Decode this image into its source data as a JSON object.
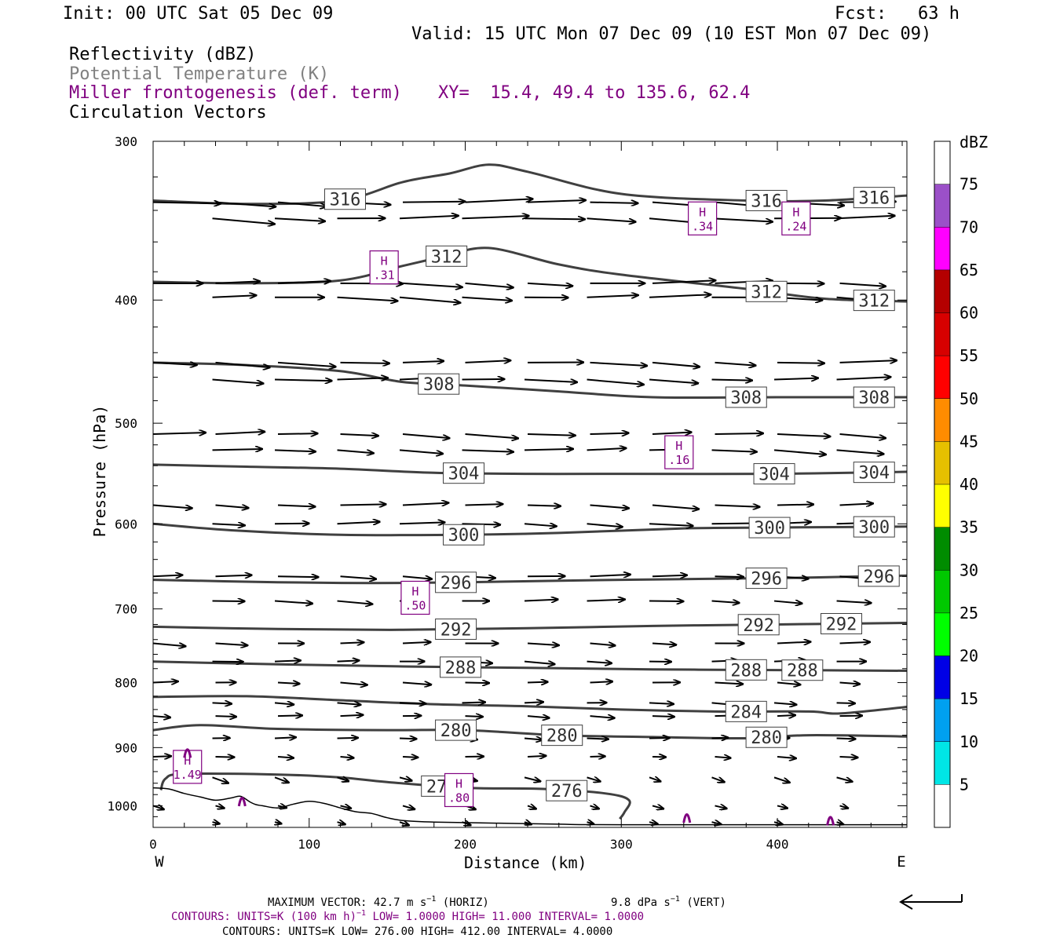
{
  "header": {
    "init": "Init: 00 UTC Sat 05 Dec 09",
    "fcst": "Fcst:   63 h",
    "valid": "Valid: 15 UTC Mon 07 Dec 09 (10 EST Mon 07 Dec 09)"
  },
  "fields": {
    "reflectivity": "Reflectivity (dBZ)",
    "theta": "Potential Temperature (K)",
    "frontogenesis": "Miller frontogenesis (def. term)",
    "xy": "XY=  15.4, 49.4 to 135.6, 62.4",
    "vectors": "Circulation Vectors"
  },
  "colors": {
    "purple": "#800080",
    "theta_line": "#404040",
    "vector": "#000000"
  },
  "chart_data": {
    "type": "cross-section",
    "xlabel": "Distance (km)",
    "ylabel": "Pressure (hPa)",
    "xlim": [
      0,
      483
    ],
    "ylim": [
      1040,
      300
    ],
    "y_log": true,
    "x_ticks": [
      "0",
      "100",
      "200",
      "300",
      "400"
    ],
    "y_ticks": [
      "300",
      "400",
      "500",
      "600",
      "700",
      "800",
      "900",
      "1000"
    ],
    "endpoint_left": "W",
    "endpoint_right": "E",
    "theta_contours": [
      {
        "label": "316",
        "points": [
          [
            0,
            334
          ],
          [
            60,
            336
          ],
          [
            120,
            334
          ],
          [
            160,
            323
          ],
          [
            190,
            318
          ],
          [
            215,
            313
          ],
          [
            240,
            317
          ],
          [
            300,
            330
          ],
          [
            380,
            334
          ],
          [
            430,
            334
          ],
          [
            483,
            331
          ]
        ],
        "label_x": [
          123,
          393,
          462
        ]
      },
      {
        "label": "312",
        "points": [
          [
            0,
            387
          ],
          [
            60,
            388
          ],
          [
            120,
            386
          ],
          [
            160,
            376
          ],
          [
            185,
            370
          ],
          [
            215,
            364
          ],
          [
            260,
            375
          ],
          [
            300,
            382
          ],
          [
            380,
            392
          ],
          [
            430,
            399
          ],
          [
            483,
            401
          ]
        ],
        "label_x": [
          188,
          393,
          462
        ]
      },
      {
        "label": "308",
        "points": [
          [
            0,
            448
          ],
          [
            60,
            450
          ],
          [
            120,
            455
          ],
          [
            160,
            464
          ],
          [
            200,
            467
          ],
          [
            260,
            472
          ],
          [
            320,
            477
          ],
          [
            400,
            477
          ],
          [
            483,
            477
          ]
        ],
        "label_x": [
          183,
          380,
          462
        ]
      },
      {
        "label": "304",
        "points": [
          [
            0,
            539
          ],
          [
            60,
            541
          ],
          [
            120,
            543
          ],
          [
            180,
            547
          ],
          [
            240,
            548
          ],
          [
            300,
            548
          ],
          [
            400,
            548
          ],
          [
            483,
            546
          ]
        ],
        "label_x": [
          199,
          398,
          462
        ]
      },
      {
        "label": "300",
        "points": [
          [
            0,
            600
          ],
          [
            50,
            607
          ],
          [
            120,
            612
          ],
          [
            200,
            612
          ],
          [
            260,
            610
          ],
          [
            340,
            605
          ],
          [
            400,
            604
          ],
          [
            483,
            603
          ]
        ],
        "label_x": [
          199,
          395,
          462
        ]
      },
      {
        "label": "296",
        "points": [
          [
            0,
            664
          ],
          [
            80,
            667
          ],
          [
            140,
            668
          ],
          [
            200,
            667
          ],
          [
            300,
            664
          ],
          [
            400,
            662
          ],
          [
            483,
            659
          ]
        ],
        "label_x": [
          194,
          393,
          465
        ]
      },
      {
        "label": "292",
        "points": [
          [
            0,
            723
          ],
          [
            80,
            726
          ],
          [
            160,
            727
          ],
          [
            240,
            725
          ],
          [
            320,
            722
          ],
          [
            400,
            720
          ],
          [
            483,
            718
          ]
        ],
        "label_x": [
          194,
          388,
          441
        ]
      },
      {
        "label": "288",
        "points": [
          [
            0,
            770
          ],
          [
            80,
            774
          ],
          [
            160,
            777
          ],
          [
            240,
            779
          ],
          [
            320,
            781
          ],
          [
            400,
            782
          ],
          [
            483,
            783
          ]
        ],
        "label_x": [
          197,
          380,
          416
        ]
      },
      {
        "label": "284",
        "points": [
          [
            0,
            821
          ],
          [
            60,
            820
          ],
          [
            120,
            826
          ],
          [
            180,
            832
          ],
          [
            240,
            835
          ],
          [
            300,
            840
          ],
          [
            360,
            843
          ],
          [
            420,
            843
          ],
          [
            440,
            846
          ],
          [
            483,
            836
          ]
        ],
        "label_x": [
          380
        ]
      },
      {
        "label": "280",
        "points": [
          [
            0,
            872
          ],
          [
            30,
            864
          ],
          [
            80,
            870
          ],
          [
            150,
            872
          ],
          [
            200,
            872
          ],
          [
            260,
            880
          ],
          [
            320,
            883
          ],
          [
            380,
            885
          ],
          [
            420,
            880
          ],
          [
            483,
            882
          ]
        ],
        "label_x": [
          194,
          262,
          393
        ]
      },
      {
        "label": "276",
        "points": [
          [
            5,
            972
          ],
          [
            8,
            952
          ],
          [
            20,
            944
          ],
          [
            80,
            945
          ],
          [
            120,
            950
          ],
          [
            150,
            958
          ],
          [
            200,
            968
          ],
          [
            250,
            970
          ],
          [
            290,
            978
          ],
          [
            305,
            990
          ],
          [
            302,
            1012
          ],
          [
            299,
            1024
          ]
        ],
        "label_x": [
          185,
          265
        ]
      }
    ],
    "frontogenesis_maxima": [
      {
        "letter": "H",
        "value": "1.49",
        "x": 22,
        "p": 932
      },
      {
        "letter": "H",
        "value": ".31",
        "x": 148,
        "p": 377
      },
      {
        "letter": "H",
        "value": ".50",
        "x": 168,
        "p": 686
      },
      {
        "letter": "H",
        "value": ".80",
        "x": 196,
        "p": 972
      },
      {
        "letter": "H",
        "value": ".16",
        "x": 337,
        "p": 527
      },
      {
        "letter": "H",
        "value": ".34",
        "x": 352,
        "p": 345
      },
      {
        "letter": "H",
        "value": ".24",
        "x": 412,
        "p": 345
      }
    ],
    "reflectivity_scale": {
      "title": "dBZ",
      "levels": [
        "5",
        "10",
        "15",
        "20",
        "25",
        "30",
        "35",
        "40",
        "45",
        "50",
        "55",
        "60",
        "65",
        "70",
        "75"
      ],
      "colors": [
        "#ffffff",
        "#00e6e6",
        "#00a0f0",
        "#0000e6",
        "#00ff00",
        "#00c800",
        "#008c00",
        "#ffff00",
        "#e6c000",
        "#ff8c00",
        "#ff0000",
        "#d70000",
        "#b40000",
        "#ff00ff",
        "#9b50c8",
        "#ffffff"
      ]
    }
  },
  "footer": {
    "max_vector": "MAXIMUM VECTOR:  42.7 m s",
    "max_vector_vert": "9.8 dPa s",
    "contours_purple": "CONTOURS:  UNITS=K (100 km h)",
    "contours_purple_rest": "LOW=   1.0000      HIGH=   11.000      INTERVAL=    1.0000",
    "contours_black": "CONTOURS:  UNITS=K  LOW=   276.00       HIGH=   412.00       INTERVAL=    4.0000"
  }
}
